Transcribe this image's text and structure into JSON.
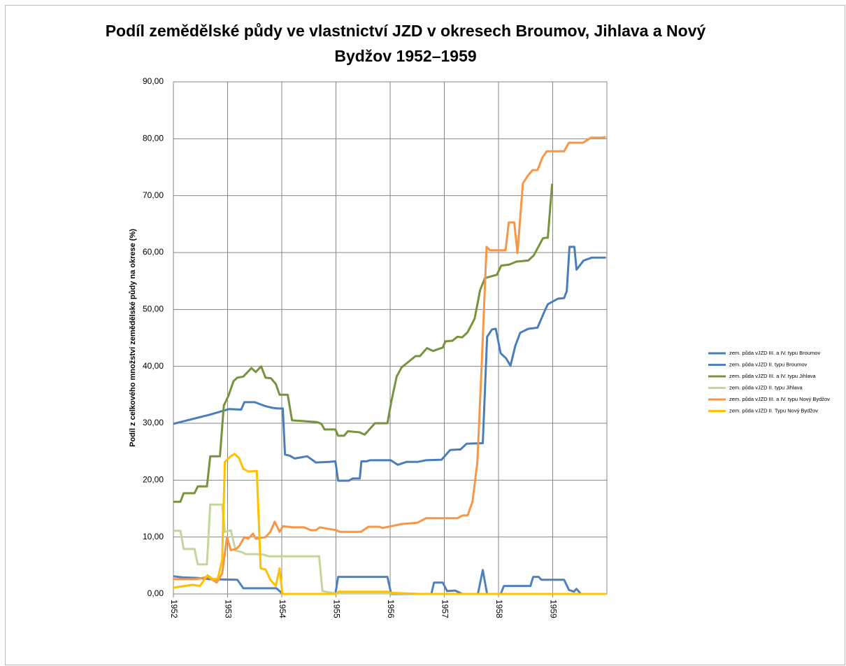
{
  "chart_data": {
    "type": "line",
    "title": [
      "Podíl zemědělské půdy ve vlastnictví JZD v okresech Broumov, Jihlava a Nový",
      "Bydžov 1952–1959"
    ],
    "y_label": "Podíl z celkového množství zemědělské půdy na okrese (%)",
    "xlim": [
      1952,
      1960
    ],
    "xticks": [
      1952,
      1953,
      1954,
      1955,
      1956,
      1957,
      1958,
      1959
    ],
    "ylim": [
      0,
      90
    ],
    "yticks": [
      {
        "value": 0,
        "label": "0,00"
      },
      {
        "value": 10,
        "label": "10,00"
      },
      {
        "value": 20,
        "label": "20,00"
      },
      {
        "value": 30,
        "label": "30,00"
      },
      {
        "value": 40,
        "label": "40,00"
      },
      {
        "value": 50,
        "label": "50,00"
      },
      {
        "value": 60,
        "label": "60,00"
      },
      {
        "value": 70,
        "label": "70,00"
      },
      {
        "value": 80,
        "label": "80,00"
      },
      {
        "value": 90,
        "label": "90,00"
      }
    ],
    "grid": true,
    "legend": "right",
    "series": [
      {
        "name": "zem. půda vJZD III. a IV. typu Broumov",
        "color": "#4a7ebb",
        "x": [
          1952.0,
          1952.67,
          1953.03,
          1953.25,
          1953.31,
          1953.5,
          1953.7,
          1953.83,
          1953.93,
          1954.02,
          1954.06,
          1954.15,
          1954.24,
          1954.47,
          1954.63,
          1954.86,
          1954.99,
          1955.04,
          1955.24,
          1955.31,
          1955.44,
          1955.47,
          1955.56,
          1955.63,
          1956.01,
          1956.14,
          1956.3,
          1956.5,
          1956.66,
          1956.95,
          1957.05,
          1957.11,
          1957.3,
          1957.41,
          1957.71,
          1957.79,
          1957.88,
          1957.95,
          1958.04,
          1958.14,
          1958.22,
          1958.31,
          1958.4,
          1958.55,
          1958.72,
          1958.85,
          1958.91,
          1958.98,
          1959.1,
          1959.21,
          1959.26,
          1959.31,
          1959.4,
          1959.44,
          1959.57,
          1959.72,
          1959.98
        ],
        "values": [
          29.9,
          31.5,
          32.5,
          32.4,
          33.7,
          33.7,
          33,
          32.7,
          32.6,
          32.6,
          24.5,
          24.3,
          23.8,
          24.2,
          23.1,
          23.2,
          23.3,
          19.9,
          19.9,
          20.3,
          20.3,
          23.3,
          23.3,
          23.5,
          23.5,
          22.7,
          23.2,
          23.2,
          23.5,
          23.6,
          24.7,
          25.3,
          25.4,
          26.4,
          26.5,
          45.2,
          46.5,
          46.6,
          42.3,
          41.4,
          40.1,
          43.6,
          45.9,
          46.6,
          46.8,
          49.7,
          50.9,
          51.3,
          51.9,
          52.0,
          53.2,
          61,
          61,
          57,
          58.6,
          59.1,
          59.1
        ]
      },
      {
        "name": "zem. půda vJZD II. typu Broumov",
        "color": "#4f81bd",
        "x": [
          1952.0,
          1952.18,
          1952.47,
          1952.67,
          1953.18,
          1953.29,
          1953.9,
          1954.02,
          1954.99,
          1955.04,
          1955.95,
          1956.02,
          1956.76,
          1956.81,
          1956.97,
          1957.05,
          1957.2,
          1957.33,
          1957.62,
          1957.71,
          1957.79,
          1958.04,
          1958.1,
          1958.59,
          1958.64,
          1958.74,
          1958.79,
          1959.21,
          1959.3,
          1959.39,
          1959.44,
          1959.52,
          1959.98
        ],
        "values": [
          3.1,
          2.9,
          2.8,
          2.6,
          2.5,
          1.0,
          1.0,
          0,
          0,
          3.0,
          3.0,
          0,
          0,
          2.0,
          2.0,
          0.5,
          0.6,
          0,
          0,
          4.2,
          0,
          0,
          1.4,
          1.4,
          3.0,
          3.0,
          2.5,
          2.5,
          0.7,
          0.4,
          0.9,
          0,
          0
        ]
      },
      {
        "name": "zem. půda vJZD III. a IV. typu Jihlava",
        "color": "#77933c",
        "x": [
          1952.0,
          1952.13,
          1952.19,
          1952.39,
          1952.45,
          1952.62,
          1952.68,
          1952.86,
          1952.93,
          1953.02,
          1953.11,
          1953.18,
          1953.29,
          1953.44,
          1953.52,
          1953.62,
          1953.7,
          1953.8,
          1953.89,
          1953.96,
          1954.11,
          1954.19,
          1954.37,
          1954.65,
          1954.73,
          1954.79,
          1954.99,
          1955.04,
          1955.15,
          1955.22,
          1955.44,
          1955.53,
          1955.72,
          1955.95,
          1956.02,
          1956.12,
          1956.21,
          1956.3,
          1956.47,
          1956.55,
          1956.68,
          1956.79,
          1956.97,
          1957.02,
          1957.15,
          1957.24,
          1957.33,
          1957.43,
          1957.56,
          1957.66,
          1957.75,
          1957.97,
          1958.05,
          1958.2,
          1958.33,
          1958.55,
          1958.65,
          1958.82,
          1958.87,
          1958.91,
          1958.99
        ],
        "values": [
          16.2,
          16.2,
          17.7,
          17.7,
          18.9,
          18.9,
          24.2,
          24.2,
          33.1,
          34.9,
          37.4,
          38,
          38.2,
          39.7,
          39,
          40,
          38,
          37.9,
          36.9,
          35,
          35,
          30.5,
          30.4,
          30.2,
          29.9,
          28.9,
          28.9,
          27.8,
          27.8,
          28.6,
          28.4,
          28.0,
          30.0,
          30.0,
          33.7,
          38.2,
          39.8,
          40.5,
          41.8,
          41.8,
          43.2,
          42.7,
          43.3,
          44.4,
          44.5,
          45.2,
          45.1,
          46,
          48.4,
          53.4,
          55.5,
          56.1,
          57.7,
          57.9,
          58.4,
          58.6,
          59.5,
          62.5,
          62.6,
          62.6,
          72.1
        ]
      },
      {
        "name": "zem. půda vJZD II. typu Jihlava",
        "color": "#c3d69b",
        "x": [
          1952.0,
          1952.13,
          1952.19,
          1952.39,
          1952.45,
          1952.62,
          1952.68,
          1952.9,
          1952.95,
          1953.06,
          1953.15,
          1953.25,
          1953.34,
          1953.54,
          1953.67,
          1953.76,
          1953.89,
          1954.69,
          1954.75,
          1954.99,
          1955.5,
          1956.02,
          1956.53,
          1959.98
        ],
        "values": [
          11.1,
          11.1,
          7.9,
          7.9,
          5.2,
          5.2,
          15.7,
          15.7,
          10.9,
          11.2,
          7.6,
          7.4,
          7.0,
          7.0,
          6.9,
          6.6,
          6.6,
          6.6,
          0.5,
          0.1,
          0.1,
          0.1,
          0,
          0
        ]
      },
      {
        "name": "zem. půda vJZD III. a IV. typu Nový Bydžov",
        "color": "#f79646",
        "x": [
          1952.0,
          1952.41,
          1952.64,
          1952.8,
          1952.9,
          1952.99,
          1953.06,
          1953.16,
          1953.22,
          1953.31,
          1953.38,
          1953.47,
          1953.52,
          1953.7,
          1953.79,
          1953.87,
          1953.96,
          1954.02,
          1954.21,
          1954.41,
          1954.54,
          1954.63,
          1954.7,
          1954.88,
          1955.01,
          1955.07,
          1955.46,
          1955.6,
          1955.8,
          1955.86,
          1956.02,
          1956.22,
          1956.5,
          1956.66,
          1957.24,
          1957.34,
          1957.43,
          1957.52,
          1957.61,
          1957.69,
          1957.78,
          1957.84,
          1958.01,
          1958.13,
          1958.19,
          1958.29,
          1958.35,
          1958.45,
          1958.55,
          1958.63,
          1958.72,
          1958.81,
          1958.89,
          1959.21,
          1959.3,
          1959.56,
          1959.71,
          1959.9,
          1959.98
        ],
        "values": [
          2.6,
          2.6,
          3.0,
          2.0,
          3.6,
          10.0,
          7.7,
          7.9,
          8.5,
          10.0,
          9.7,
          10.6,
          9.7,
          10.0,
          10.9,
          12.7,
          10.9,
          11.9,
          11.7,
          11.7,
          11.2,
          11.2,
          11.7,
          11.4,
          11.2,
          10.9,
          10.9,
          11.8,
          11.8,
          11.6,
          11.9,
          12.3,
          12.5,
          13.3,
          13.3,
          13.8,
          13.8,
          16.2,
          23.2,
          40.5,
          61.0,
          60.4,
          60.4,
          60.4,
          65.3,
          65.3,
          59.9,
          72.2,
          73.6,
          74.5,
          74.5,
          76.7,
          77.8,
          77.8,
          79.3,
          79.3,
          80.2,
          80.2,
          80.3
        ]
      },
      {
        "name": "zem. půda vJZD II. Typu Nový Bydžov",
        "color": "#ffc000",
        "x": [
          1952.0,
          1952.35,
          1952.49,
          1952.63,
          1952.73,
          1952.82,
          1952.9,
          1952.95,
          1953.06,
          1953.13,
          1953.21,
          1953.29,
          1953.38,
          1953.54,
          1953.61,
          1953.7,
          1953.79,
          1953.89,
          1953.96,
          1954.01,
          1954.99,
          1955.06,
          1955.95,
          1956.02,
          1956.53,
          1959.98
        ],
        "values": [
          1.1,
          1.6,
          1.4,
          3.3,
          2.6,
          2.7,
          6.0,
          23.2,
          24.2,
          24.6,
          23.9,
          22.0,
          21.5,
          21.6,
          4.5,
          4.3,
          2.5,
          1.4,
          4.5,
          0,
          0,
          0.4,
          0.4,
          0.2,
          0,
          0
        ]
      }
    ]
  }
}
